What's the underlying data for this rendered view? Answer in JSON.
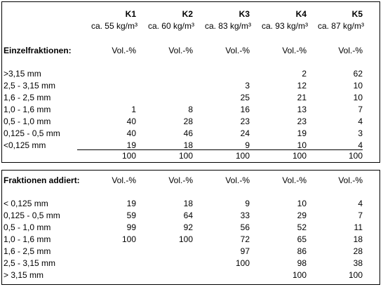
{
  "table1": {
    "columns": [
      "K1",
      "K2",
      "K3",
      "K4",
      "K5"
    ],
    "densities": [
      "ca. 55 kg/m³",
      "ca. 60 kg/m³",
      "ca. 83 kg/m³",
      "ca. 93 kg/m³",
      "ca. 87 kg/m³"
    ],
    "section_label": "Einzelfraktionen:",
    "units": [
      "Vol.-%",
      "Vol.-%",
      "Vol.-%",
      "Vol.-%",
      "Vol.-%"
    ],
    "rows": [
      {
        "label": ">3,15 mm",
        "values": [
          null,
          null,
          null,
          2,
          62
        ]
      },
      {
        "label": "2,5 - 3,15 mm",
        "values": [
          null,
          null,
          3,
          12,
          10
        ]
      },
      {
        "label": "1,6 - 2,5 mm",
        "values": [
          null,
          null,
          25,
          21,
          10
        ]
      },
      {
        "label": "1,0 - 1,6 mm",
        "values": [
          1,
          8,
          16,
          13,
          7
        ]
      },
      {
        "label": "0,5 - 1,0 mm",
        "values": [
          40,
          28,
          23,
          23,
          4
        ]
      },
      {
        "label": "0,125 - 0,5 mm",
        "values": [
          40,
          46,
          24,
          19,
          3
        ]
      },
      {
        "label": "<0,125 mm",
        "values": [
          19,
          18,
          9,
          10,
          4
        ]
      }
    ],
    "totals": [
      100,
      100,
      100,
      100,
      100
    ]
  },
  "table2": {
    "section_label": "Fraktionen addiert:",
    "units": [
      "Vol.-%",
      "Vol.-%",
      "Vol.-%",
      "Vol.-%",
      "Vol.-%"
    ],
    "rows": [
      {
        "label": "< 0,125 mm",
        "values": [
          19,
          18,
          9,
          10,
          4
        ]
      },
      {
        "label": "0,125 - 0,5 mm",
        "values": [
          59,
          64,
          33,
          29,
          7
        ]
      },
      {
        "label": "0,5 - 1,0 mm",
        "values": [
          99,
          92,
          56,
          52,
          11
        ]
      },
      {
        "label": "1,0 - 1,6 mm",
        "values": [
          100,
          100,
          72,
          65,
          18
        ]
      },
      {
        "label": "1,6 - 2,5 mm",
        "values": [
          null,
          null,
          97,
          86,
          28
        ]
      },
      {
        "label": "2,5 - 3,15 mm",
        "values": [
          null,
          null,
          100,
          98,
          38
        ]
      },
      {
        "label": "> 3,15 mm",
        "values": [
          null,
          null,
          null,
          100,
          100
        ]
      }
    ]
  }
}
